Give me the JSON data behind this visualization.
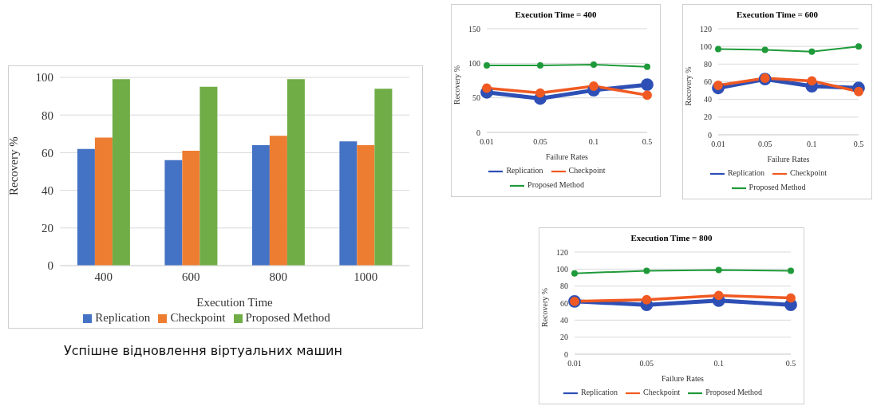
{
  "chart_data": [
    {
      "type": "bar",
      "xlabel": "Execution Time",
      "ylabel": "Recovery %",
      "categories": [
        "400",
        "600",
        "800",
        "1000"
      ],
      "series": [
        {
          "name": "Replication",
          "color": "#4472c4",
          "values": [
            62,
            56,
            64,
            66
          ]
        },
        {
          "name": "Checkpoint",
          "color": "#ed7d31",
          "values": [
            68,
            61,
            69,
            64
          ]
        },
        {
          "name": "Proposed Method",
          "color": "#70ad47",
          "values": [
            99,
            95,
            99,
            94
          ]
        }
      ],
      "ylim": [
        0,
        100
      ],
      "yticks": [
        0,
        20,
        40,
        60,
        80,
        100
      ],
      "grid": "y",
      "legend": "bottom",
      "annotations": [
        "Успішне відновлення віртуальних машин"
      ]
    },
    {
      "type": "line",
      "title": "Execution Time = 400",
      "xlabel": "Failure Rates",
      "ylabel": "Recovery %",
      "categories": [
        "0.01",
        "0.05",
        "0.1",
        "0.5"
      ],
      "series": [
        {
          "name": "Replication",
          "color": "#2e4fb5",
          "values": [
            58,
            49,
            61,
            69
          ]
        },
        {
          "name": "Checkpoint",
          "color": "#f05a22",
          "values": [
            64,
            57,
            67,
            54
          ]
        },
        {
          "name": "Proposed Method",
          "color": "#1f9a3a",
          "values": [
            97,
            97,
            98,
            95
          ]
        }
      ],
      "ylim": [
        0,
        150
      ],
      "yticks": [
        0,
        50,
        100,
        150
      ],
      "grid": "y",
      "legend": "bottom",
      "marker": "circle"
    },
    {
      "type": "line",
      "title": "Execution Time = 600",
      "xlabel": "Failure Rates",
      "ylabel": "Recovery %",
      "categories": [
        "0.01",
        "0.05",
        "0.1",
        "0.5"
      ],
      "series": [
        {
          "name": "Replication",
          "color": "#2e4fb5",
          "values": [
            53,
            63,
            55,
            53
          ]
        },
        {
          "name": "Checkpoint",
          "color": "#f05a22",
          "values": [
            56,
            64,
            61,
            49
          ]
        },
        {
          "name": "Proposed Method",
          "color": "#1f9a3a",
          "values": [
            97,
            96,
            94,
            100
          ]
        }
      ],
      "ylim": [
        0,
        120
      ],
      "yticks": [
        0,
        20,
        40,
        60,
        80,
        100,
        120
      ],
      "grid": "y",
      "legend": "bottom",
      "marker": "circle"
    },
    {
      "type": "line",
      "title": "Execution Time = 800",
      "xlabel": "Failure Rates",
      "ylabel": "Recovery %",
      "categories": [
        "0.01",
        "0.05",
        "0.1",
        "0.5"
      ],
      "series": [
        {
          "name": "Replication",
          "color": "#2e4fb5",
          "values": [
            62,
            58,
            63,
            58
          ]
        },
        {
          "name": "Checkpoint",
          "color": "#f05a22",
          "values": [
            62,
            64,
            69,
            66
          ]
        },
        {
          "name": "Proposed Method",
          "color": "#1f9a3a",
          "values": [
            95,
            98,
            99,
            98
          ]
        }
      ],
      "ylim": [
        0,
        120
      ],
      "yticks": [
        0,
        20,
        40,
        60,
        80,
        100,
        120
      ],
      "grid": "y",
      "legend": "bottom",
      "marker": "circle"
    }
  ]
}
